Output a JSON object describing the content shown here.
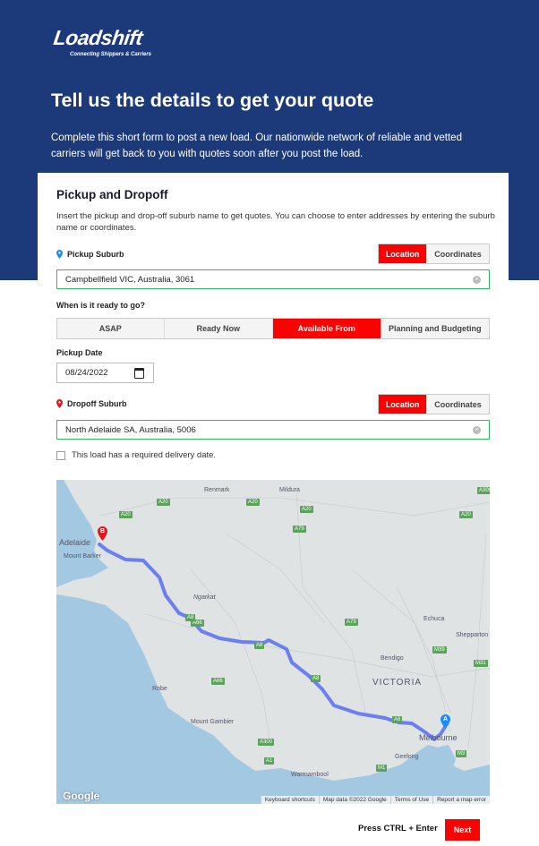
{
  "brand": {
    "name": "Loadshift",
    "tagline": "Connecting Shippers & Carriers"
  },
  "hero": {
    "title": "Tell us the details to get your quote",
    "subtitle": "Complete this short form to post a new load. Our nationwide network of reliable and vetted carriers will get back to you with quotes soon after you post the load."
  },
  "section": {
    "title": "Pickup and Dropoff",
    "description": "Insert the pickup and drop-off suburb name to get quotes. You can choose to enter addresses by entering the suburb name or coordinates."
  },
  "pickup": {
    "label": "Pickup Suburb",
    "mode_options": [
      "Location",
      "Coordinates"
    ],
    "mode_selected": "Location",
    "value": "Campbellfield VIC, Australia, 3061",
    "icon": "map-pin-icon",
    "icon_color": "#1a8cff"
  },
  "ready": {
    "label": "When is it ready to go?",
    "options": [
      "ASAP",
      "Ready Now",
      "Available From",
      "Planning and Budgeting"
    ],
    "selected": "Available From"
  },
  "pickup_date": {
    "label": "Pickup Date",
    "value": "08/24/2022"
  },
  "dropoff": {
    "label": "Dropoff Suburb",
    "mode_options": [
      "Location",
      "Coordinates"
    ],
    "mode_selected": "Location",
    "value": "North Adelaide SA, Australia, 5006",
    "icon": "map-pin-icon",
    "icon_color": "#e8141b"
  },
  "delivery_checkbox": {
    "label": "This load has a required delivery date.",
    "checked": false
  },
  "map": {
    "places": [
      "Renmark",
      "Mildura",
      "Adelaide",
      "Mount Barker",
      "Ngarkat",
      "Echuca",
      "Shepparton",
      "Bendigo",
      "VICTORIA",
      "Robe",
      "Mount Gambier",
      "Warrnambool",
      "Geelong",
      "Melbourne"
    ],
    "roads": [
      "A20",
      "A20",
      "A20",
      "A20",
      "A20",
      "A79",
      "A79",
      "A66",
      "A66",
      "A8",
      "A8",
      "A8",
      "A8",
      "A300",
      "A1",
      "M1",
      "M39",
      "M31",
      "M3",
      "A300"
    ],
    "markers": {
      "a": "A",
      "b": "B"
    },
    "google": "Google",
    "attribution": [
      "Keyboard shortcuts",
      "Map data ©2022 Google",
      "Terms of Use",
      "Report a map error"
    ],
    "route_color": "#6b7ff0"
  },
  "footer": {
    "hint": "Press CTRL + Enter",
    "next": "Next"
  },
  "colors": {
    "primary": "#ff0000",
    "header_bg": "#1c3a7a",
    "valid_border": "#2ebd5c"
  }
}
